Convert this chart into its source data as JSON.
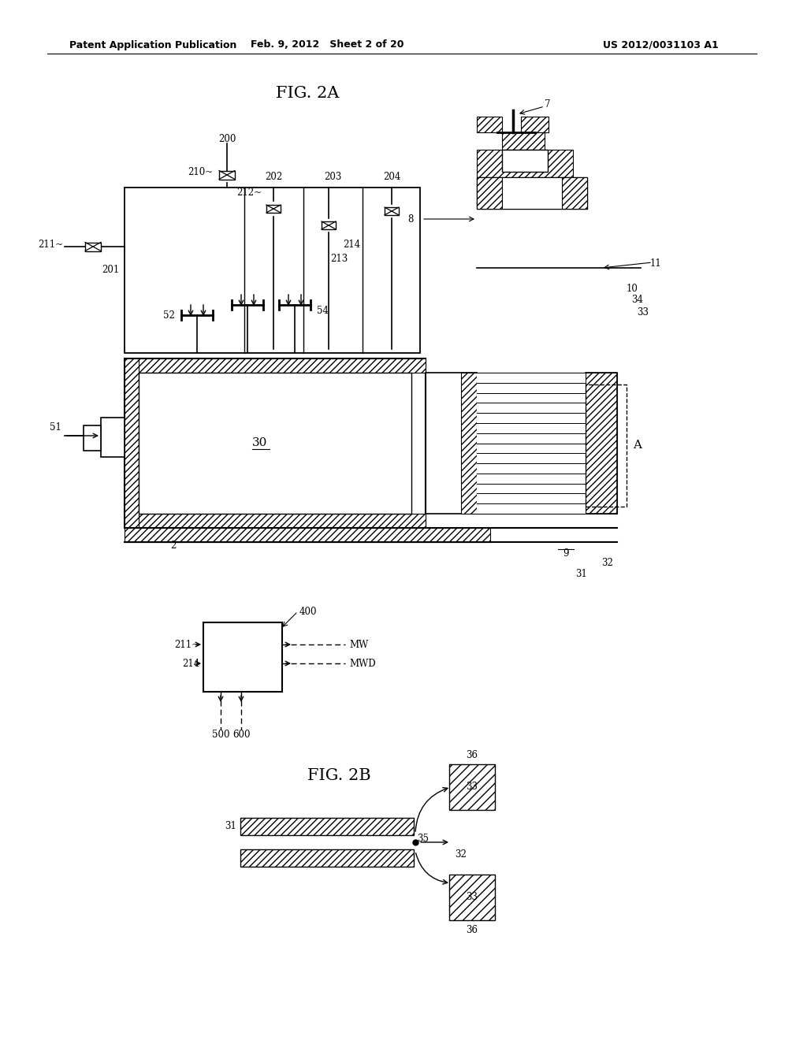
{
  "bg_color": "#ffffff",
  "line_color": "#000000",
  "header_left": "Patent Application Publication",
  "header_center": "Feb. 9, 2012   Sheet 2 of 20",
  "header_right": "US 2012/0031103 A1",
  "fig2a_title": "FIG. 2A",
  "fig2b_title": "FIG. 2B",
  "label_fontsize": 8.5,
  "title_fontsize": 15
}
